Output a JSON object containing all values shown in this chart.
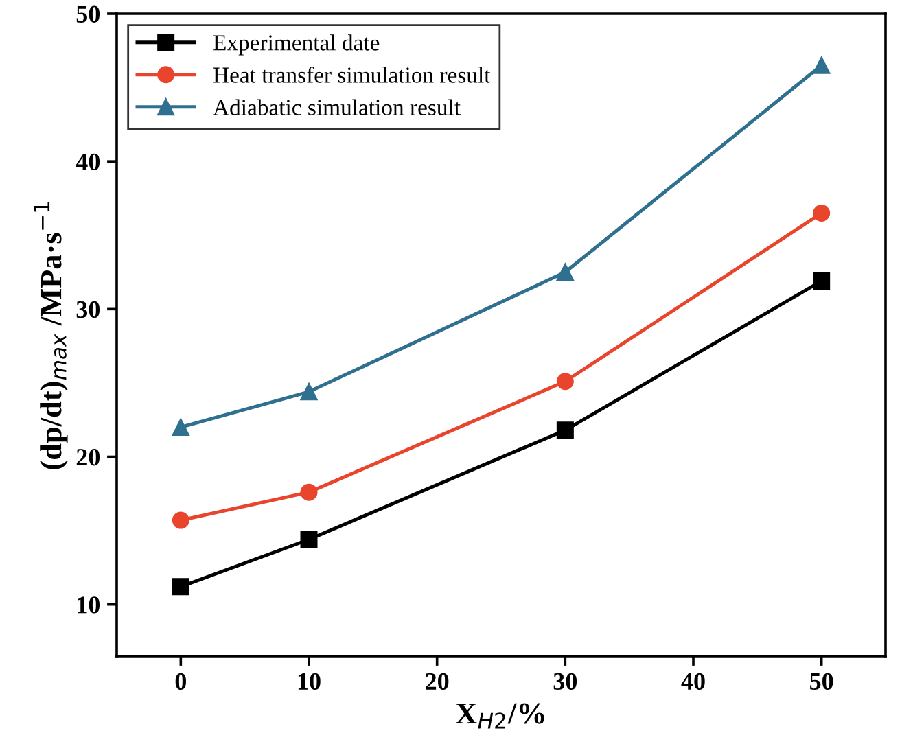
{
  "chart_data": {
    "type": "line",
    "xlabel": "X$_{H2}$/%",
    "ylabel": "(dp/dt)$_{max}$ /MPa·s$^{−1}$",
    "x": [
      0,
      10,
      30,
      50
    ],
    "xlim": [
      -5,
      55
    ],
    "xticks": [
      0,
      10,
      20,
      30,
      40,
      50
    ],
    "ylim": [
      6.5,
      50
    ],
    "yticks": [
      10,
      20,
      30,
      40,
      50
    ],
    "grid": false,
    "legend": "top left",
    "line_style": "solid",
    "series": [
      {
        "name": "Experimental date",
        "color": "#000000",
        "marker": "square",
        "values": [
          11.2,
          14.4,
          21.8,
          31.9
        ]
      },
      {
        "name": "Heat transfer simulation result",
        "color": "#e8452c",
        "marker": "circle",
        "values": [
          15.7,
          17.6,
          25.1,
          36.5
        ]
      },
      {
        "name": "Adiabatic simulation result",
        "color": "#2f6f8f",
        "marker": "triangle",
        "values": [
          22.0,
          24.4,
          32.5,
          46.5
        ]
      }
    ]
  }
}
